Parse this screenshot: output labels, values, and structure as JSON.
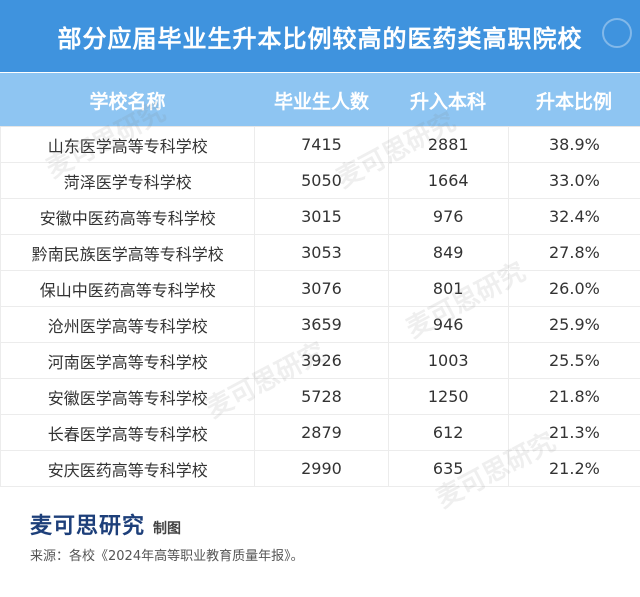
{
  "title": "部分应届毕业生升本比例较高的医药类高职院校",
  "headers": {
    "school": "学校名称",
    "graduates": "毕业生人数",
    "upgrade": "升入本科",
    "ratio": "升本比例"
  },
  "rows": [
    {
      "school": "山东医学高等专科学校",
      "graduates": "7415",
      "upgrade": "2881",
      "ratio": "38.9%"
    },
    {
      "school": "菏泽医学专科学校",
      "graduates": "5050",
      "upgrade": "1664",
      "ratio": "33.0%"
    },
    {
      "school": "安徽中医药高等专科学校",
      "graduates": "3015",
      "upgrade": "976",
      "ratio": "32.4%"
    },
    {
      "school": "黔南民族医学高等专科学校",
      "graduates": "3053",
      "upgrade": "849",
      "ratio": "27.8%"
    },
    {
      "school": "保山中医药高等专科学校",
      "graduates": "3076",
      "upgrade": "801",
      "ratio": "26.0%"
    },
    {
      "school": "沧州医学高等专科学校",
      "graduates": "3659",
      "upgrade": "946",
      "ratio": "25.9%"
    },
    {
      "school": "河南医学高等专科学校",
      "graduates": "3926",
      "upgrade": "1003",
      "ratio": "25.5%"
    },
    {
      "school": "安徽医学高等专科学校",
      "graduates": "5728",
      "upgrade": "1250",
      "ratio": "21.8%"
    },
    {
      "school": "长春医学高等专科学校",
      "graduates": "2879",
      "upgrade": "612",
      "ratio": "21.3%"
    },
    {
      "school": "安庆医药高等专科学校",
      "graduates": "2990",
      "upgrade": "635",
      "ratio": "21.2%"
    }
  ],
  "footer": {
    "brand": "麦可思研究",
    "made_by": "制图",
    "source": "来源：各校《2024年高等职业教育质量年报》。"
  },
  "watermark": "麦可思研究",
  "colors": {
    "title_bg": "#3f93de",
    "header_bg": "#8ec5f2",
    "brand": "#1d3f7a"
  }
}
